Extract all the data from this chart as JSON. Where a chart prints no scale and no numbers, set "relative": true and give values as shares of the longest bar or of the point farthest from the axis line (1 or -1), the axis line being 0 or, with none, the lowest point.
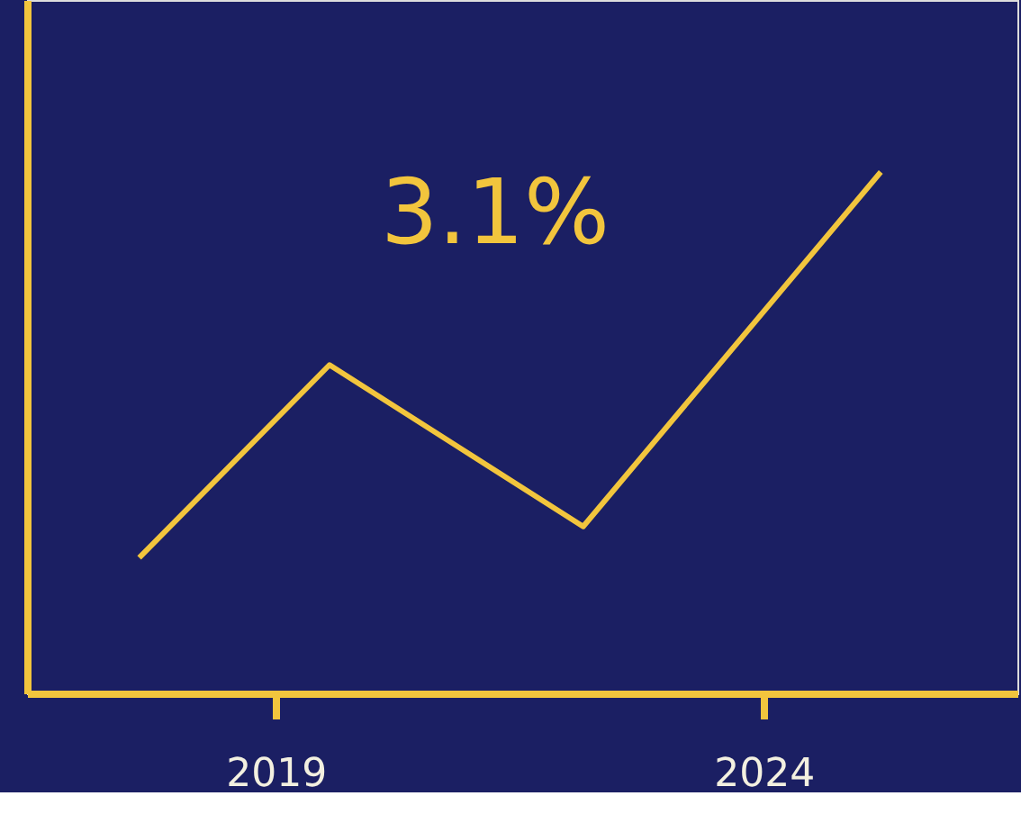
{
  "chart_data": {
    "type": "line",
    "relative": true,
    "x": [
      2017.6,
      2019.55,
      2022.15,
      2025.2
    ],
    "series": [
      {
        "color": "#f2c53d",
        "values": [
          0.26,
          0.63,
          0.32,
          1
        ]
      }
    ],
    "xlim": [
      2016.45,
      2026.6
    ],
    "xticks": [
      2019,
      2024
    ],
    "annotations": [
      "3.1%"
    ],
    "grid": false,
    "marker": "none",
    "line_style": "solid"
  }
}
